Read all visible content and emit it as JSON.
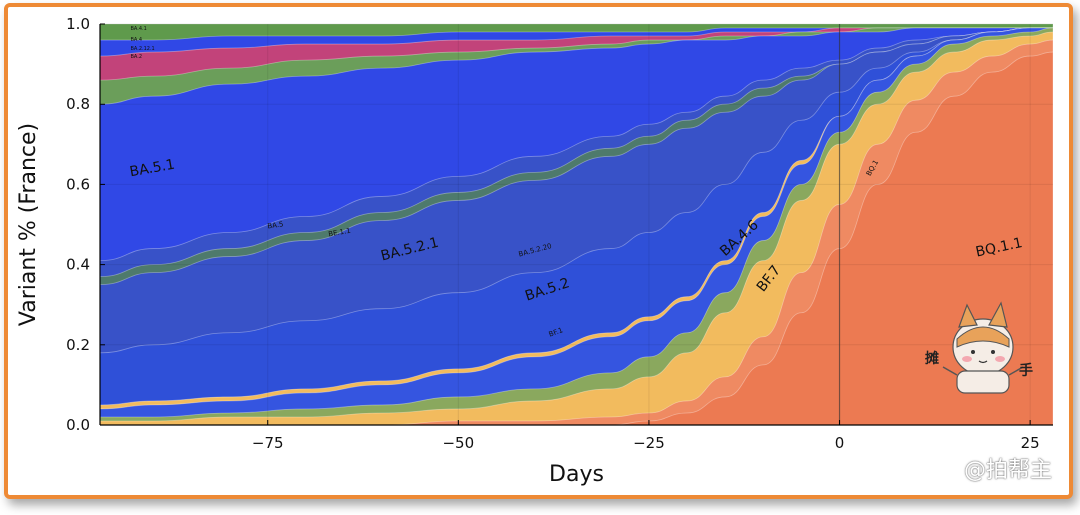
{
  "chart_data": {
    "type": "area",
    "title": "",
    "xlabel": "Days",
    "ylabel": "Variant % (France)",
    "xlim": [
      -97,
      28
    ],
    "ylim": [
      0,
      1
    ],
    "x_ticks": [
      -75,
      -50,
      -25,
      0,
      25
    ],
    "x_tick_labels": [
      "−75",
      "−50",
      "−25",
      "0",
      "25"
    ],
    "y_ticks": [
      0,
      0.2,
      0.4,
      0.6,
      0.8,
      1.0
    ],
    "y_tick_labels": [
      "0.0",
      "0.2",
      "0.4",
      "0.6",
      "0.8",
      "1.0"
    ],
    "stacking": "cumulative",
    "x": [
      -97,
      -90,
      -80,
      -70,
      -60,
      -50,
      -40,
      -30,
      -25,
      -20,
      -15,
      -10,
      -5,
      0,
      5,
      10,
      15,
      20,
      25,
      28
    ],
    "series": [
      {
        "name": "BQ.1.1",
        "color": "#ec7a52",
        "upper": [
          0.0,
          0.0,
          0.0,
          0.0,
          0.0,
          0.0,
          0.0,
          0.0,
          0.01,
          0.03,
          0.07,
          0.15,
          0.28,
          0.44,
          0.6,
          0.73,
          0.82,
          0.88,
          0.92,
          0.93
        ]
      },
      {
        "name": "BQ.1",
        "color": "#ef8a62",
        "upper": [
          0.0,
          0.0,
          0.0,
          0.0,
          0.0,
          0.01,
          0.01,
          0.02,
          0.03,
          0.06,
          0.12,
          0.22,
          0.38,
          0.55,
          0.7,
          0.81,
          0.88,
          0.92,
          0.95,
          0.96
        ]
      },
      {
        "name": "BF.7",
        "color": "#f2bb5e",
        "upper": [
          0.01,
          0.01,
          0.02,
          0.02,
          0.03,
          0.04,
          0.06,
          0.09,
          0.12,
          0.18,
          0.28,
          0.41,
          0.56,
          0.7,
          0.8,
          0.88,
          0.93,
          0.96,
          0.97,
          0.98
        ]
      },
      {
        "name": "BA.4.6",
        "color": "#8aa85e",
        "upper": [
          0.02,
          0.02,
          0.03,
          0.04,
          0.05,
          0.07,
          0.09,
          0.13,
          0.17,
          0.23,
          0.33,
          0.46,
          0.6,
          0.73,
          0.83,
          0.9,
          0.95,
          0.97,
          0.98,
          0.99
        ]
      },
      {
        "name": "BF.1",
        "color": "#3555e0",
        "upper": [
          0.04,
          0.05,
          0.06,
          0.08,
          0.1,
          0.13,
          0.17,
          0.22,
          0.26,
          0.31,
          0.4,
          0.52,
          0.65,
          0.77,
          0.86,
          0.92,
          0.96,
          0.98,
          0.99,
          0.99
        ]
      },
      {
        "name": "BA.5.2",
        "color": "#f2bb5e",
        "upper": [
          0.05,
          0.06,
          0.07,
          0.09,
          0.11,
          0.14,
          0.18,
          0.23,
          0.27,
          0.32,
          0.41,
          0.53,
          0.66,
          0.77,
          0.86,
          0.92,
          0.96,
          0.98,
          0.99,
          0.99
        ]
      },
      {
        "name": "BA.5.2.20",
        "color": "#2f50d8",
        "upper": [
          0.18,
          0.2,
          0.23,
          0.26,
          0.29,
          0.33,
          0.38,
          0.44,
          0.48,
          0.53,
          0.6,
          0.68,
          0.76,
          0.83,
          0.89,
          0.93,
          0.96,
          0.98,
          0.99,
          0.99
        ]
      },
      {
        "name": "BA.5.2.1",
        "color": "#3852c8",
        "upper": [
          0.35,
          0.38,
          0.42,
          0.46,
          0.51,
          0.56,
          0.61,
          0.67,
          0.7,
          0.74,
          0.78,
          0.82,
          0.86,
          0.9,
          0.93,
          0.95,
          0.97,
          0.98,
          0.99,
          0.99
        ]
      },
      {
        "name": "BE.1.1",
        "color": "#4e7a6c",
        "upper": [
          0.37,
          0.4,
          0.44,
          0.48,
          0.53,
          0.58,
          0.63,
          0.69,
          0.72,
          0.76,
          0.8,
          0.84,
          0.87,
          0.9,
          0.93,
          0.95,
          0.97,
          0.98,
          0.99,
          0.99
        ]
      },
      {
        "name": "BA.5",
        "color": "#3852c8",
        "upper": [
          0.41,
          0.44,
          0.48,
          0.52,
          0.57,
          0.62,
          0.67,
          0.72,
          0.75,
          0.78,
          0.82,
          0.86,
          0.89,
          0.91,
          0.94,
          0.96,
          0.97,
          0.98,
          0.99,
          0.99
        ]
      },
      {
        "name": "BA.5.1",
        "color": "#3048e6",
        "upper": [
          0.8,
          0.82,
          0.85,
          0.87,
          0.89,
          0.91,
          0.93,
          0.94,
          0.95,
          0.96,
          0.96,
          0.97,
          0.97,
          0.98,
          0.98,
          0.99,
          0.99,
          0.99,
          0.99,
          0.99
        ]
      },
      {
        "name": "BA.2",
        "color": "#6b9e5a",
        "upper": [
          0.86,
          0.87,
          0.89,
          0.91,
          0.92,
          0.93,
          0.94,
          0.95,
          0.96,
          0.96,
          0.97,
          0.97,
          0.98,
          0.98,
          0.99,
          0.99,
          0.99,
          0.99,
          0.99,
          0.99
        ]
      },
      {
        "name": "BA.2.12.1",
        "color": "#c2437a",
        "upper": [
          0.92,
          0.93,
          0.94,
          0.95,
          0.95,
          0.96,
          0.96,
          0.97,
          0.97,
          0.97,
          0.98,
          0.98,
          0.98,
          0.99,
          0.99,
          0.99,
          0.99,
          0.99,
          0.99,
          0.99
        ]
      },
      {
        "name": "BA.4",
        "color": "#3048e6",
        "upper": [
          0.96,
          0.96,
          0.97,
          0.97,
          0.97,
          0.98,
          0.98,
          0.98,
          0.98,
          0.98,
          0.99,
          0.99,
          0.99,
          0.99,
          0.99,
          0.99,
          0.99,
          0.99,
          0.99,
          0.99
        ]
      },
      {
        "name": "BA.4.1",
        "color": "#5f9a4c",
        "upper": [
          1,
          1,
          1,
          1,
          1,
          1,
          1,
          1,
          1,
          1,
          1,
          1,
          1,
          1,
          1,
          1,
          1,
          1,
          1,
          1
        ]
      }
    ],
    "annotations": [
      {
        "text": "BA.5.1",
        "x": -93,
        "y": 0.62,
        "size": "large",
        "angle": -10
      },
      {
        "text": "BA.5",
        "x": -75,
        "y": 0.49,
        "size": "small",
        "angle": -8
      },
      {
        "text": "BE.1.1",
        "x": -67,
        "y": 0.47,
        "size": "small",
        "angle": -10
      },
      {
        "text": "BA.5.2.1",
        "x": -60,
        "y": 0.41,
        "size": "large",
        "angle": -14
      },
      {
        "text": "BA.5.2.20",
        "x": -42,
        "y": 0.42,
        "size": "small",
        "angle": -15
      },
      {
        "text": "BA.5.2",
        "x": -41,
        "y": 0.31,
        "size": "large",
        "angle": -18
      },
      {
        "text": "BF.1",
        "x": -38,
        "y": 0.22,
        "size": "small",
        "angle": -20
      },
      {
        "text": "BA.4.6",
        "x": -15,
        "y": 0.42,
        "size": "large",
        "angle": -42
      },
      {
        "text": "BF.7",
        "x": -10,
        "y": 0.33,
        "size": "large",
        "angle": -52
      },
      {
        "text": "BQ.1",
        "x": 4,
        "y": 0.62,
        "size": "small",
        "angle": -60
      },
      {
        "text": "BQ.1.1",
        "x": 18,
        "y": 0.42,
        "size": "large",
        "angle": -12
      },
      {
        "text": "BA.4.1",
        "x": -93,
        "y": 0.985,
        "size": "tiny",
        "angle": 0
      },
      {
        "text": "BA.4",
        "x": -93,
        "y": 0.958,
        "size": "tiny",
        "angle": 0
      },
      {
        "text": "BA.2.12.1",
        "x": -93,
        "y": 0.935,
        "size": "tiny",
        "angle": 0
      },
      {
        "text": "BA.2",
        "x": -93,
        "y": 0.915,
        "size": "tiny",
        "angle": 0
      }
    ],
    "vertical_line_at": 0,
    "grid": true
  },
  "watermark": "@拍帮主",
  "mascot_label": "摊手"
}
